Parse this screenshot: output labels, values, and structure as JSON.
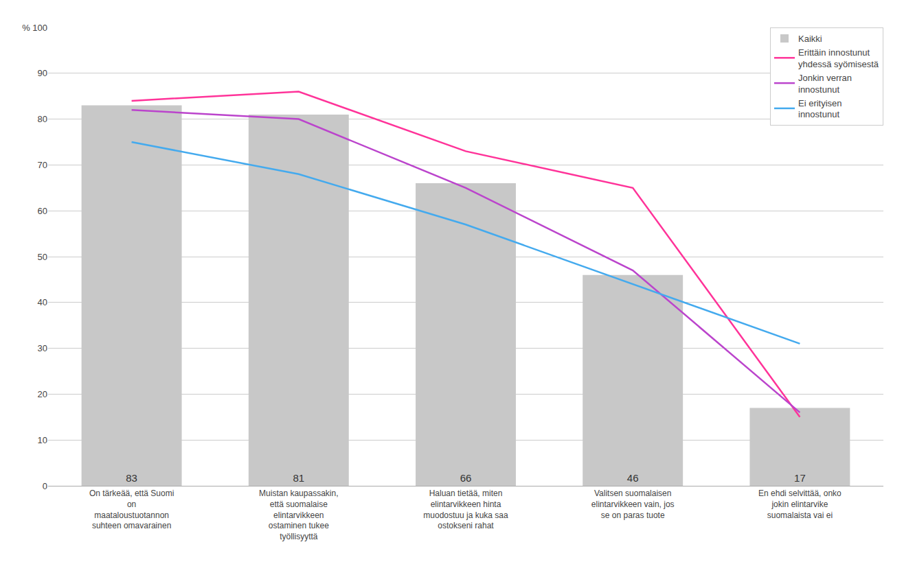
{
  "chart_data": {
    "type": "bar",
    "categories": [
      "On tärkeää, että Suomi\non\nmaataloustuotannon\nsuhteen omavarainen",
      "Muistan kaupassakin,\nettä suomalaise\nelintarvikkeen\nostaminen tukee\ntyöllisyyttä",
      "Haluan tietää, miten\nelintarvikkeen hinta\nmuodostuu ja kuka saa\nostokseni rahat",
      "Valitsen suomalaisen\nelintarvikkeen vain, jos\nse on paras tuote",
      "En ehdi selvittää, onko\njokin elintarvike\nsuomalaista vai ei"
    ],
    "series": [
      {
        "name": "Kaikki",
        "type": "bar",
        "color": "#c8c8c8",
        "values": [
          83,
          81,
          66,
          46,
          17
        ]
      },
      {
        "name": "Erittäin innostunut\nyhdessä syömisestä",
        "type": "line",
        "color": "#ff3399",
        "values": [
          84,
          86,
          73,
          65,
          15
        ]
      },
      {
        "name": "Jonkin verran\ninnostunut",
        "type": "line",
        "color": "#bb44cc",
        "values": [
          82,
          80,
          65,
          47,
          16
        ]
      },
      {
        "name": "Ei erityisen\ninnostunut",
        "type": "line",
        "color": "#44aaee",
        "values": [
          75,
          68,
          57,
          44,
          31
        ]
      }
    ],
    "ylim": [
      0,
      100
    ],
    "yticks": [
      0,
      10,
      20,
      30,
      40,
      50,
      60,
      70,
      80,
      90,
      {
        "value": 100,
        "label": "% 100"
      }
    ],
    "grid": true,
    "legend": "upper right",
    "data_labels": true
  }
}
